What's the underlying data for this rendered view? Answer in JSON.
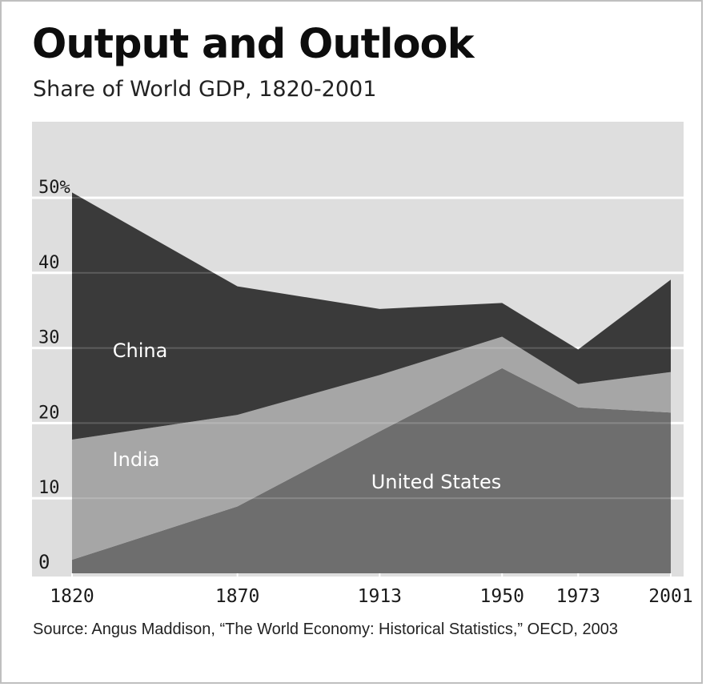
{
  "chart_data": {
    "type": "area",
    "stacked": true,
    "title": "Output and Outlook",
    "subtitle": "Share of World GDP, 1820-2001",
    "x": [
      1820,
      1870,
      1913,
      1950,
      1973,
      2001
    ],
    "x_tick_labels": [
      "1820",
      "1870",
      "1913",
      "1950",
      "1973",
      "2001"
    ],
    "ylim": [
      0,
      50
    ],
    "y_tick_values": [
      0,
      10,
      20,
      30,
      40,
      50
    ],
    "y_tick_labels": [
      "0",
      "10",
      "20",
      "30",
      "40",
      "50%"
    ],
    "grid": true,
    "series": [
      {
        "name": "United States",
        "values": [
          1.8,
          8.9,
          18.9,
          27.3,
          22.1,
          21.4
        ],
        "color": "#6e6e6e"
      },
      {
        "name": "India",
        "values": [
          16.0,
          12.2,
          7.5,
          4.2,
          3.1,
          5.4
        ],
        "color": "#a6a6a6"
      },
      {
        "name": "China",
        "values": [
          32.9,
          17.1,
          8.8,
          4.5,
          4.6,
          12.3
        ],
        "color": "#3a3a3a"
      }
    ],
    "plot_background": "#dedede",
    "grid_color": "#ffffff",
    "label_color": "#ffffff"
  },
  "source_text": "Source: Angus Maddison, “The World Economy: Historical Statistics,” OECD, 2003"
}
